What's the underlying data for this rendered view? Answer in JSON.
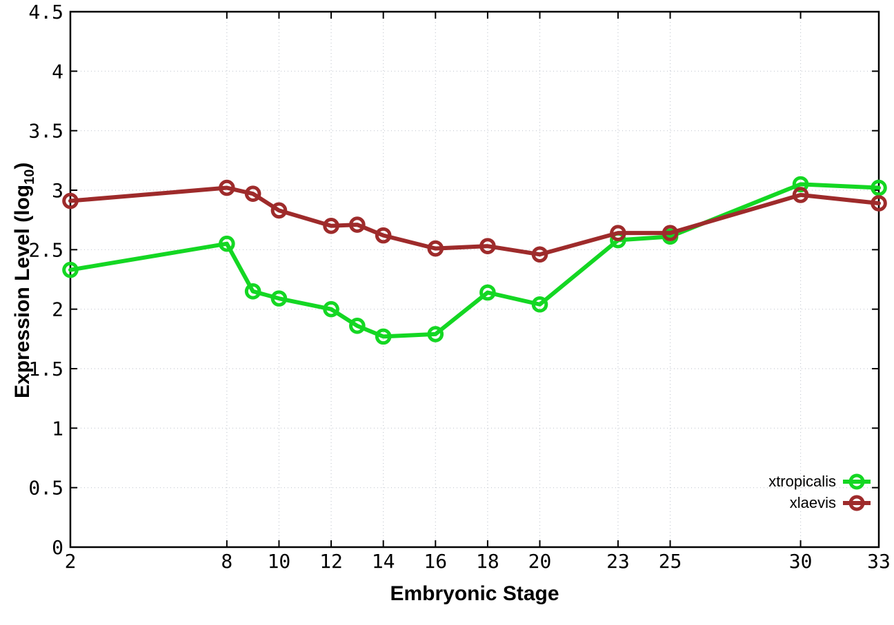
{
  "figure": {
    "background": "#ffffff",
    "ylabel_pre": "Expression Level (log",
    "ylabel_sub": "10",
    "ylabel_post": ")"
  },
  "chart_data": {
    "type": "line",
    "title": "",
    "xlabel": "Embryonic Stage",
    "ylabel": "Expression Level (log10)",
    "xlim": [
      2,
      33
    ],
    "ylim": [
      0,
      4.5
    ],
    "grid": true,
    "legend_position": "inside-bottom-right",
    "x_tick_labels": [
      "2",
      "8",
      "10",
      "12",
      "14",
      "16",
      "18",
      "20",
      "23",
      "25",
      "30",
      "33"
    ],
    "x_tick_values": [
      2,
      8,
      10,
      12,
      14,
      16,
      18,
      20,
      23,
      25,
      30,
      33
    ],
    "y_tick_labels": [
      "0",
      "0.5",
      "1",
      "1.5",
      "2",
      "2.5",
      "3",
      "3.5",
      "4",
      "4.5"
    ],
    "y_tick_values": [
      0,
      0.5,
      1,
      1.5,
      2,
      2.5,
      3,
      3.5,
      4,
      4.5
    ],
    "x": [
      2,
      8,
      9,
      10,
      12,
      13,
      14,
      16,
      18,
      20,
      23,
      25,
      30,
      33
    ],
    "series": [
      {
        "name": "xtropicalis",
        "color": "#14d723",
        "marker": "open-circle",
        "values": [
          2.33,
          2.55,
          2.15,
          2.09,
          2.0,
          1.86,
          1.77,
          1.79,
          2.14,
          2.04,
          2.58,
          2.61,
          3.05,
          3.02
        ]
      },
      {
        "name": "xlaevis",
        "color": "#9e2b2b",
        "marker": "open-circle",
        "values": [
          2.91,
          3.02,
          2.97,
          2.83,
          2.7,
          2.71,
          2.62,
          2.51,
          2.53,
          2.46,
          2.64,
          2.64,
          2.96,
          2.89
        ]
      }
    ],
    "style": {
      "grid_color": "#c3c8d0",
      "axis_color": "#000000",
      "line_width": 6,
      "marker_radius": 9.3,
      "marker_stroke": 5
    }
  }
}
